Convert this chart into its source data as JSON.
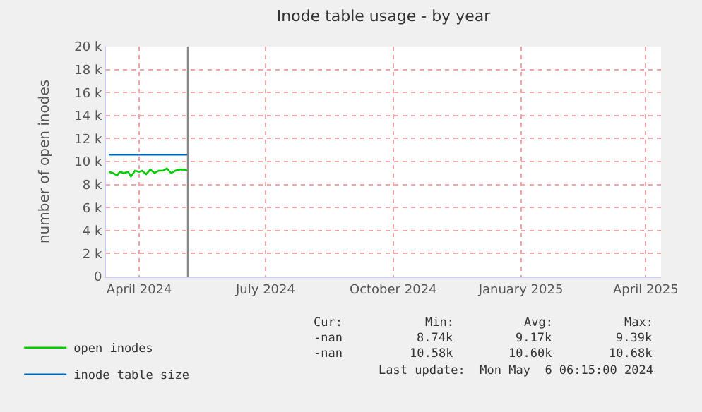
{
  "chart_data": {
    "type": "line",
    "title": "Inode table usage - by year",
    "ylabel": "number of open inodes",
    "xlim": [
      "2024-03-08",
      "2025-04-12"
    ],
    "xticks": [
      {
        "value": "2024-04-01",
        "label": "April 2024"
      },
      {
        "value": "2024-07-01",
        "label": "July 2024"
      },
      {
        "value": "2024-10-01",
        "label": "October 2024"
      },
      {
        "value": "2025-01-01",
        "label": "January 2025"
      },
      {
        "value": "2025-04-01",
        "label": "April 2025"
      }
    ],
    "ylim": [
      0,
      20000
    ],
    "yticks": [
      {
        "value": 0,
        "label": "0"
      },
      {
        "value": 2000,
        "label": "2 k"
      },
      {
        "value": 4000,
        "label": "4 k"
      },
      {
        "value": 6000,
        "label": "6 k"
      },
      {
        "value": 8000,
        "label": "8 k"
      },
      {
        "value": 10000,
        "label": "10 k"
      },
      {
        "value": 12000,
        "label": "12 k"
      },
      {
        "value": 14000,
        "label": "14 k"
      },
      {
        "value": 16000,
        "label": "16 k"
      },
      {
        "value": 18000,
        "label": "18 k"
      },
      {
        "value": 20000,
        "label": "20 k"
      }
    ],
    "grid": true,
    "legend": "bottom left",
    "marker": "none",
    "line_style": "solid",
    "series": [
      {
        "name": "open inodes",
        "color": "#00cc00",
        "x": [
          "2024-03-10",
          "2024-03-13",
          "2024-03-16",
          "2024-03-18",
          "2024-03-21",
          "2024-03-24",
          "2024-03-26",
          "2024-03-29",
          "2024-04-01",
          "2024-04-03",
          "2024-04-06",
          "2024-04-09",
          "2024-04-12",
          "2024-04-15",
          "2024-04-18",
          "2024-04-21",
          "2024-04-24",
          "2024-04-27",
          "2024-04-30",
          "2024-05-03",
          "2024-05-06"
        ],
        "values": [
          9100,
          9000,
          8800,
          9100,
          9000,
          9100,
          8700,
          9200,
          9100,
          9200,
          8900,
          9300,
          9000,
          9200,
          9200,
          9400,
          9000,
          9200,
          9300,
          9300,
          9200
        ]
      },
      {
        "name": "inode table size",
        "color": "#0066b3",
        "x": [
          "2024-03-10",
          "2024-04-01",
          "2024-05-06"
        ],
        "values": [
          10600,
          10600,
          10600
        ]
      }
    ],
    "ref_lines": [
      {
        "axis": "x",
        "value": "2024-05-06",
        "color": "#888888"
      }
    ],
    "annotations": [
      "Cur:",
      "Min:",
      "Avg:",
      "Max:",
      "-nan",
      "8.74k",
      "9.17k",
      "9.39k",
      "-nan",
      "10.58k",
      "10.60k",
      "10.68k",
      "Last update:  Mon May  6 06:15:00 2024"
    ]
  }
}
